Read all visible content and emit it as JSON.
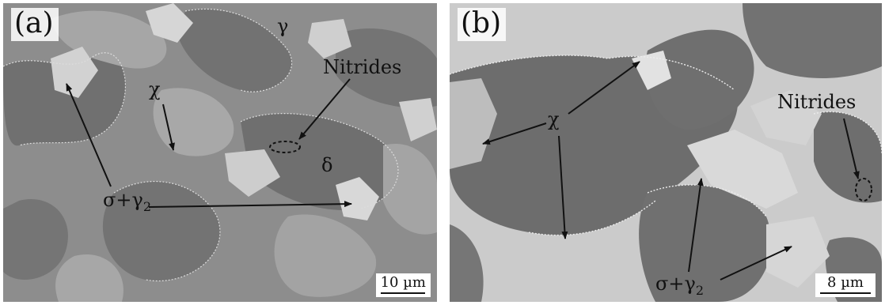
{
  "panels": [
    {
      "label": "(a)",
      "scale_bar": "10 µm",
      "phases": {
        "gamma": "γ",
        "delta": "δ",
        "chi": "χ",
        "sigma": "σ+γ",
        "sigma_sub": "2",
        "nitrides": "Nitrides"
      }
    },
    {
      "label": "(b)",
      "scale_bar": "8 µm",
      "phases": {
        "chi": "χ",
        "sigma": "σ+γ",
        "sigma_sub": "2",
        "nitrides": "Nitrides"
      }
    }
  ],
  "colors": {
    "delta_grain": "#6e6e6e",
    "gamma_grain": "#a5a5a5",
    "sigma_region": "#d4d4d4",
    "annotation": "#111111"
  }
}
